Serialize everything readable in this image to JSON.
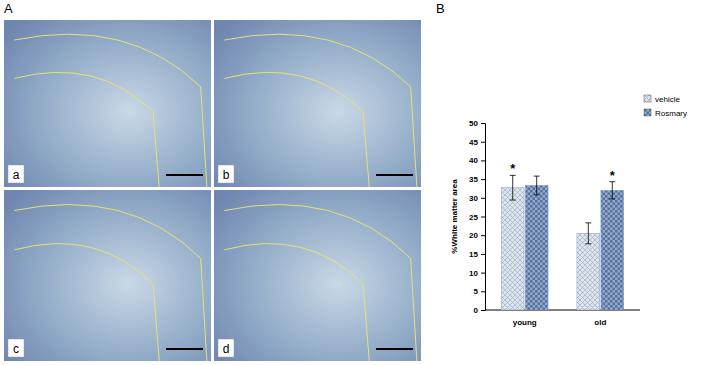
{
  "panel_labels": [
    "A",
    "B"
  ],
  "image_labels": [
    "a",
    "b",
    "c",
    "d"
  ],
  "chart_data": {
    "type": "bar",
    "y_label": "%White matter area",
    "categories": [
      "young",
      "old"
    ],
    "series": [
      {
        "name": "vehicle",
        "color": "#dbe5f1",
        "values": [
          32.7,
          20.5
        ],
        "errors": [
          3.3,
          2.8
        ]
      },
      {
        "name": "Rosmary",
        "color": "#8eaadb",
        "values": [
          33.3,
          32.0
        ],
        "errors": [
          2.5,
          2.3
        ]
      }
    ],
    "annotations": [
      {
        "text": "*",
        "category": 0,
        "series": 0
      },
      {
        "text": "*",
        "category": 1,
        "series": 1
      }
    ],
    "ylim": [
      0,
      50
    ],
    "yticks": [
      0,
      5,
      10,
      15,
      20,
      25,
      30,
      35,
      40,
      45,
      50
    ],
    "legend": "top-right",
    "grid": false
  }
}
